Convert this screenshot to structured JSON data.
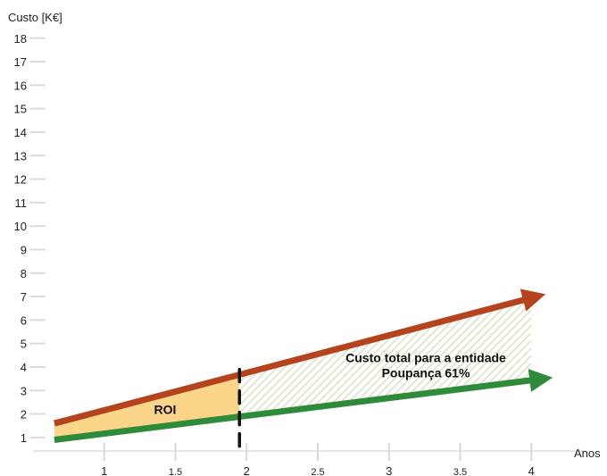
{
  "chart_data": {
    "type": "line",
    "ylabel": "Custo [K€]",
    "xlabel": "Anos",
    "x_ticks": [
      {
        "value": 1,
        "label": "1"
      },
      {
        "value": 1.5,
        "label": "1.5"
      },
      {
        "value": 2,
        "label": "2"
      },
      {
        "value": 2.5,
        "label": "2.5"
      },
      {
        "value": 3,
        "label": "3"
      },
      {
        "value": 3.5,
        "label": "3.5"
      },
      {
        "value": 4,
        "label": "4"
      }
    ],
    "y_ticks": [
      1,
      2,
      3,
      4,
      5,
      6,
      7,
      8,
      9,
      10,
      11,
      12,
      13,
      14,
      15,
      16,
      17,
      18
    ],
    "xlim": [
      0.5,
      4.5
    ],
    "ylim": [
      0.5,
      18.5
    ],
    "series": [
      {
        "key": "upper",
        "color": "#b5441e",
        "points": [
          [
            0.65,
            1.6
          ],
          [
            4.1,
            7.1
          ]
        ]
      },
      {
        "key": "lower",
        "color": "#2e8b3a",
        "points": [
          [
            0.65,
            0.9
          ],
          [
            4.15,
            3.55
          ]
        ]
      }
    ],
    "break_even_x": 1.95,
    "roi_fill_color": "#fad58a",
    "savings_hatch_color": "#c9d6a8",
    "annotations": {
      "roi": "ROI",
      "total_cost": "Custo total para a entidade",
      "savings": "Poupança 61%"
    }
  }
}
